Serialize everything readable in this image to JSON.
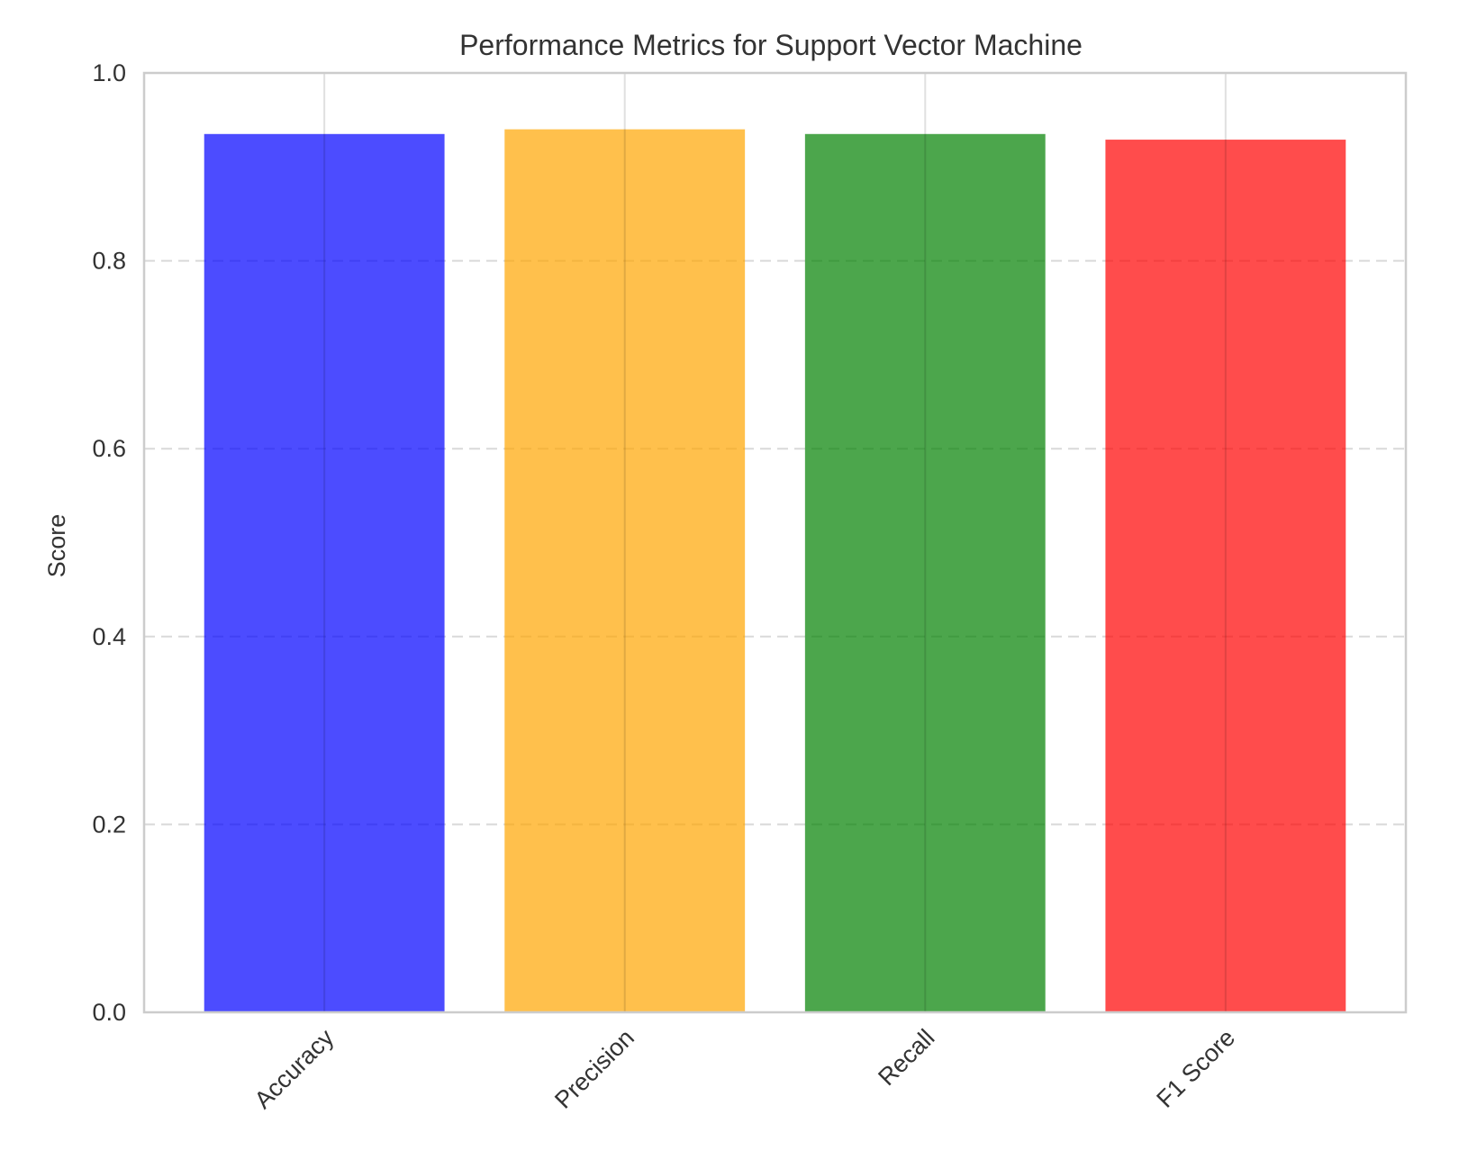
{
  "chart_data": {
    "type": "bar",
    "title": "Performance Metrics for Support Vector Machine",
    "xlabel": "",
    "ylabel": "Score",
    "categories": [
      "Accuracy",
      "Precision",
      "Recall",
      "F1 Score"
    ],
    "values": [
      0.935,
      0.94,
      0.935,
      0.929
    ],
    "colors": [
      "#0000ff",
      "#ffa500",
      "#008000",
      "#ff0000"
    ],
    "bar_opacity": 0.7,
    "ylim": [
      0,
      1.0
    ],
    "yticks": [
      "0.0",
      "0.2",
      "0.4",
      "0.6",
      "0.8",
      "1.0"
    ],
    "grid": "y-dashed",
    "legend": "none"
  }
}
